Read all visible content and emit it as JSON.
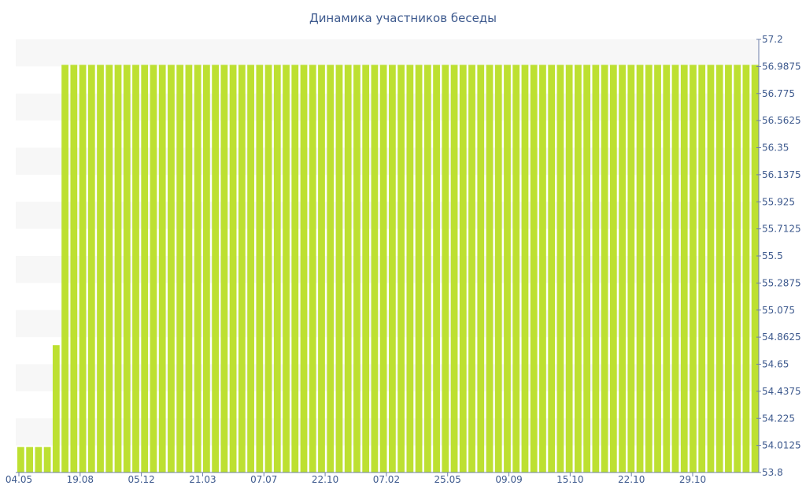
{
  "chart_data": {
    "type": "bar",
    "title": "Динамика участников беседы",
    "xlabel": "",
    "ylabel": "",
    "ylim": [
      53.8,
      57.2
    ],
    "y_ticks": [
      "57.2",
      "56.9875",
      "56.775",
      "56.5625",
      "56.35",
      "56.1375",
      "55.925",
      "55.7125",
      "55.5",
      "55.2875",
      "55.075",
      "54.8625",
      "54.65",
      "54.4375",
      "54.225",
      "54.0125",
      "53.8"
    ],
    "x_ticks": [
      "04.05",
      "19.08",
      "05.12",
      "21.03",
      "07.07",
      "22.10",
      "07.02",
      "25.05",
      "09.09",
      "15.10",
      "22.10",
      "29.10"
    ],
    "bar_color": "#bde031",
    "series": [
      {
        "values": [
          54,
          54,
          54,
          54,
          54.8,
          57,
          57,
          57,
          57,
          57,
          57,
          57,
          57,
          57,
          57,
          57,
          57,
          57,
          57,
          57,
          57,
          57,
          57,
          57,
          57,
          57,
          57,
          57,
          57,
          57,
          57,
          57,
          57,
          57,
          57,
          57,
          57,
          57,
          57,
          57,
          57,
          57,
          57,
          57,
          57,
          57,
          57,
          57,
          57,
          57,
          57,
          57,
          57,
          57,
          57,
          57,
          57,
          57,
          57,
          57,
          57,
          57,
          57,
          57,
          57,
          57,
          57,
          57,
          57,
          57,
          57,
          57,
          57,
          57,
          57,
          57,
          57,
          57,
          57,
          57,
          57,
          57,
          57,
          57
        ]
      }
    ]
  }
}
